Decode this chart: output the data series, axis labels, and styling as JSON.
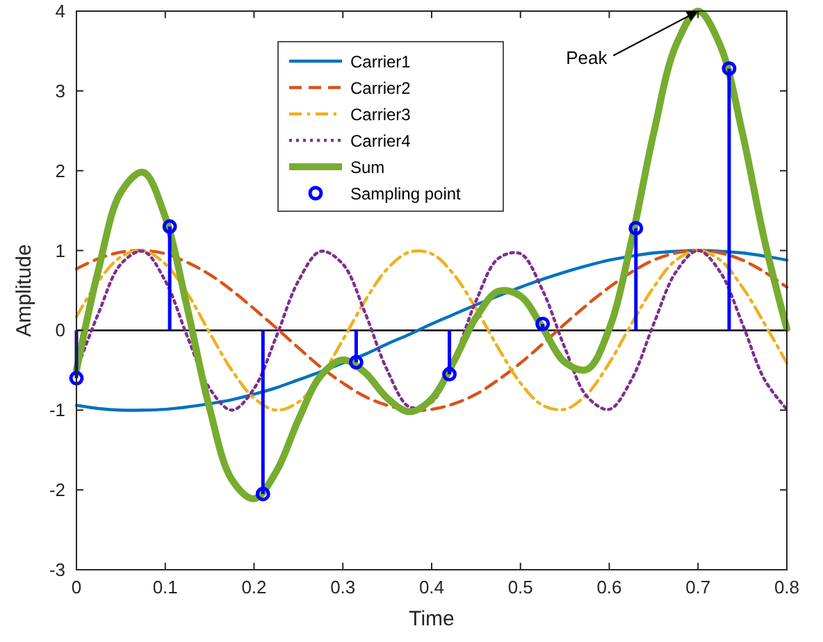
{
  "chart_data": {
    "type": "line",
    "xlabel": "Time",
    "ylabel": "Amplitude",
    "x": [
      0,
      0.025,
      0.05,
      0.075,
      0.1,
      0.125,
      0.15,
      0.175,
      0.2,
      0.225,
      0.25,
      0.275,
      0.3,
      0.325,
      0.35,
      0.375,
      0.4,
      0.425,
      0.45,
      0.475,
      0.5,
      0.525,
      0.55,
      0.575,
      0.6,
      0.625,
      0.65,
      0.675,
      0.7,
      0.725,
      0.75,
      0.775,
      0.8
    ],
    "series": [
      {
        "name": "Carrier1",
        "color": "#0072bd",
        "line_style": "solid",
        "values": [
          -0.94,
          -0.98,
          -1,
          -1,
          -0.99,
          -0.96,
          -0.92,
          -0.87,
          -0.8,
          -0.72,
          -0.62,
          -0.52,
          -0.41,
          -0.3,
          -0.17,
          -0.05,
          0.08,
          0.2,
          0.32,
          0.43,
          0.54,
          0.64,
          0.73,
          0.81,
          0.88,
          0.93,
          0.97,
          0.99,
          1,
          0.99,
          0.97,
          0.93,
          0.88
        ]
      },
      {
        "name": "Carrier2",
        "color": "#d95319",
        "line_style": "dashed",
        "values": [
          0.77,
          0.9,
          0.98,
          1,
          0.96,
          0.85,
          0.7,
          0.5,
          0.27,
          0.03,
          -0.22,
          -0.46,
          -0.66,
          -0.83,
          -0.94,
          -1,
          -0.99,
          -0.92,
          -0.8,
          -0.62,
          -0.41,
          -0.17,
          0.08,
          0.32,
          0.54,
          0.73,
          0.88,
          0.97,
          1,
          0.97,
          0.88,
          0.73,
          0.54
        ]
      },
      {
        "name": "Carrier3",
        "color": "#edb120",
        "line_style": "dashdot",
        "values": [
          0.17,
          0.62,
          0.92,
          1,
          0.83,
          0.46,
          -0.03,
          -0.5,
          -0.85,
          -1,
          -0.9,
          -0.58,
          -0.12,
          0.37,
          0.77,
          0.98,
          0.96,
          0.7,
          0.27,
          -0.22,
          -0.66,
          -0.94,
          -0.99,
          -0.8,
          -0.41,
          0.08,
          0.54,
          0.88,
          1,
          0.88,
          0.54,
          0.08,
          -0.41
        ]
      },
      {
        "name": "Carrier4",
        "color": "#7e2f8e",
        "line_style": "dotted",
        "values": [
          -0.5,
          0.22,
          0.83,
          0.99,
          0.62,
          -0.08,
          -0.73,
          -1,
          -0.73,
          -0.08,
          0.62,
          0.99,
          0.83,
          0.22,
          -0.5,
          -0.96,
          -0.9,
          -0.37,
          0.37,
          0.9,
          0.96,
          0.5,
          -0.22,
          -0.83,
          -0.99,
          -0.62,
          0.08,
          0.73,
          1,
          0.73,
          0.08,
          -0.62,
          -0.99
        ]
      },
      {
        "name": "Sum",
        "color": "#77ac30",
        "line_style": "solid",
        "values": [
          -0.5,
          0.77,
          1.73,
          1.98,
          1.42,
          0.27,
          -0.98,
          -1.87,
          -2.11,
          -1.77,
          -1.12,
          -0.57,
          -0.37,
          -0.53,
          -0.85,
          -1.02,
          -0.86,
          -0.39,
          0.16,
          0.49,
          0.43,
          0.03,
          -0.4,
          -0.49,
          0.02,
          1.12,
          2.47,
          3.57,
          4,
          3.57,
          2.47,
          1.12,
          0.02
        ]
      },
      {
        "name": "Sampling point",
        "type": "lollipop",
        "color": "#0000ff",
        "marker": "circle",
        "x": [
          0,
          0.105,
          0.21,
          0.315,
          0.42,
          0.525,
          0.63,
          0.735
        ],
        "values": [
          -0.6,
          1.3,
          -2.05,
          -0.4,
          -0.55,
          0.08,
          1.28,
          3.28
        ]
      }
    ],
    "xlim": [
      0,
      0.8
    ],
    "xticks": [
      0,
      0.1,
      0.2,
      0.3,
      0.4,
      0.5,
      0.6,
      0.7,
      0.8
    ],
    "ylim": [
      -3,
      4
    ],
    "yticks": [
      -3,
      -2,
      -1,
      0,
      1,
      2,
      3,
      4
    ],
    "ref_lines": [
      {
        "axis": "y",
        "value": 0,
        "color": "#000000"
      }
    ],
    "annotations": [
      {
        "text": "Peak",
        "x": 0.7,
        "y": 4
      }
    ],
    "legend": "top",
    "grid": false
  }
}
